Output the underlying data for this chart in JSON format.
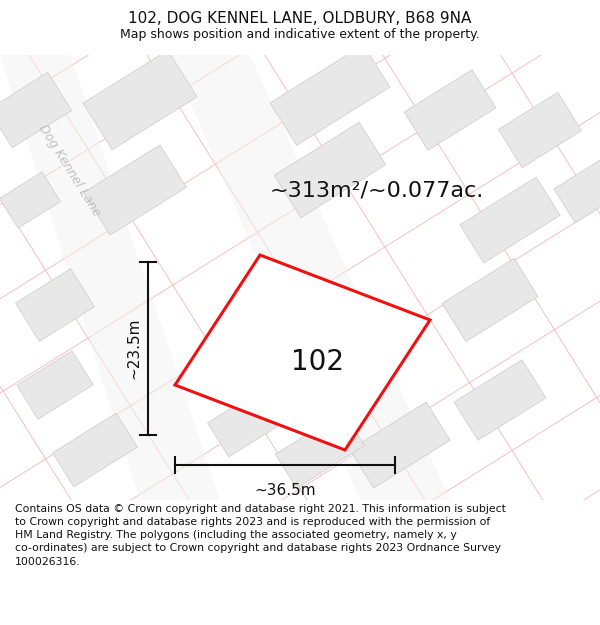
{
  "title": "102, DOG KENNEL LANE, OLDBURY, B68 9NA",
  "subtitle": "Map shows position and indicative extent of the property.",
  "footer": "Contains OS data © Crown copyright and database right 2021. This information is subject to Crown copyright and database rights 2023 and is reproduced with the permission of HM Land Registry. The polygons (including the associated geometry, namely x, y co-ordinates) are subject to Crown copyright and database rights 2023 Ordnance Survey 100026316.",
  "area_label": "~313m²/~0.077ac.",
  "width_label": "~36.5m",
  "height_label": "~23.5m",
  "property_label": "102",
  "bg_color": "#ffffff",
  "map_bg": "#ffffff",
  "building_color": "#e8e8e8",
  "building_edge": "#d0d0d0",
  "street_line_color": "#f5b8b8",
  "property_outline_color": "#ee1111",
  "property_fill": "#ffffff",
  "dim_line_color": "#111111",
  "road_fill": "#f0f0f0",
  "road_text_color": "#c0c0c0",
  "title_fontsize": 11,
  "subtitle_fontsize": 9,
  "footer_fontsize": 7.8,
  "area_fontsize": 16,
  "prop_label_fontsize": 20,
  "dim_fontsize": 11,
  "road_fontsize": 9
}
